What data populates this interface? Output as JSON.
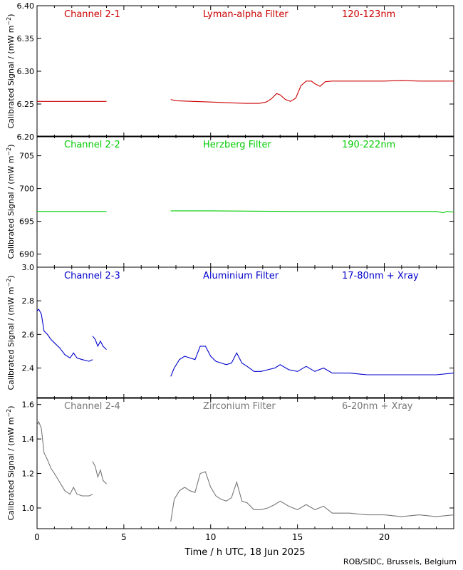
{
  "figure": {
    "xlabel": "Time / h UTC, 18 Jun 2025",
    "credit": "ROB/SIDC, Brussels, Belgium",
    "xlim": [
      0,
      24
    ],
    "xticks": [
      0,
      5,
      10,
      15,
      20
    ],
    "ylabel": "Calibrated Signal / (mW m",
    "ylabel_sup": "−2",
    "ylabel_close": ")"
  },
  "chart_data": [
    {
      "type": "line",
      "channel": "Channel 2-1",
      "filter": "Lyman-alpha Filter",
      "band": "120-123nm",
      "color": "#cc0000",
      "ylim": [
        6.2,
        6.4
      ],
      "yticks": [
        "6.20",
        "6.25",
        "6.30",
        "6.35",
        "6.40"
      ],
      "series": [
        {
          "name": "segment-1",
          "x": [
            0.0,
            1.0,
            2.0,
            3.0,
            4.0
          ],
          "y": [
            6.254,
            6.254,
            6.254,
            6.254,
            6.254
          ]
        },
        {
          "name": "segment-2",
          "x": [
            7.7,
            8.0,
            9.0,
            10.0,
            11.0,
            12.0,
            12.8,
            13.2,
            13.5,
            13.8,
            14.0,
            14.3,
            14.6,
            14.9,
            15.2,
            15.5,
            15.8,
            16.0,
            16.3,
            16.6,
            17.0,
            18.0,
            19.0,
            20.0,
            21.0,
            22.0,
            23.0,
            24.0
          ],
          "y": [
            6.257,
            6.255,
            6.254,
            6.253,
            6.252,
            6.251,
            6.251,
            6.253,
            6.258,
            6.266,
            6.264,
            6.257,
            6.254,
            6.259,
            6.278,
            6.285,
            6.285,
            6.281,
            6.277,
            6.284,
            6.285,
            6.285,
            6.285,
            6.285,
            6.286,
            6.285,
            6.285,
            6.285
          ]
        }
      ]
    },
    {
      "type": "line",
      "channel": "Channel 2-2",
      "filter": "Herzberg Filter",
      "band": "190-222nm",
      "color": "#00cc00",
      "ylim": [
        688,
        708
      ],
      "yticks": [
        "690",
        "695",
        "700",
        "705"
      ],
      "series": [
        {
          "name": "segment-1",
          "x": [
            0.0,
            2.0,
            4.0
          ],
          "y": [
            696.5,
            696.5,
            696.5
          ]
        },
        {
          "name": "segment-2",
          "x": [
            7.7,
            10.0,
            15.0,
            20.0,
            23.0,
            23.4,
            23.6,
            24.0
          ],
          "y": [
            696.6,
            696.6,
            696.5,
            696.5,
            696.5,
            696.3,
            696.5,
            696.4
          ]
        }
      ]
    },
    {
      "type": "line",
      "channel": "Channel 2-3",
      "filter": "Aluminium Filter",
      "band": "17-80nm + Xray",
      "color": "#0000cc",
      "ylim": [
        2.22,
        3.0
      ],
      "yticks": [
        "2.4",
        "2.6",
        "2.8",
        "3.0"
      ],
      "series": [
        {
          "name": "segment-1",
          "x": [
            0.0,
            0.1,
            0.25,
            0.4,
            0.6,
            0.8,
            1.0,
            1.3,
            1.6,
            1.9,
            2.1,
            2.3,
            2.6,
            3.0,
            3.2
          ],
          "y": [
            2.74,
            2.75,
            2.72,
            2.62,
            2.6,
            2.57,
            2.55,
            2.52,
            2.48,
            2.46,
            2.49,
            2.46,
            2.45,
            2.44,
            2.45
          ]
        },
        {
          "name": "segment-2",
          "x": [
            3.2,
            3.35,
            3.5,
            3.65,
            3.8,
            4.0
          ],
          "y": [
            2.59,
            2.57,
            2.53,
            2.56,
            2.53,
            2.51
          ]
        },
        {
          "name": "segment-3",
          "x": [
            7.7,
            7.9,
            8.2,
            8.5,
            8.8,
            9.1,
            9.4,
            9.7,
            10.0,
            10.3,
            10.6,
            10.9,
            11.2,
            11.5,
            11.8,
            12.1,
            12.5,
            12.9,
            13.3,
            13.7,
            14.0,
            14.5,
            15.0,
            15.5,
            16.0,
            16.5,
            17.0,
            18.0,
            19.0,
            20.0,
            21.0,
            22.0,
            23.0,
            24.0
          ],
          "y": [
            2.35,
            2.4,
            2.45,
            2.47,
            2.46,
            2.45,
            2.53,
            2.53,
            2.47,
            2.44,
            2.43,
            2.42,
            2.43,
            2.49,
            2.43,
            2.41,
            2.38,
            2.38,
            2.39,
            2.4,
            2.42,
            2.39,
            2.38,
            2.41,
            2.38,
            2.4,
            2.37,
            2.37,
            2.36,
            2.36,
            2.36,
            2.36,
            2.36,
            2.37
          ]
        }
      ]
    },
    {
      "type": "line",
      "channel": "Channel 2-4",
      "filter": "Zirconium Filter",
      "band": "6-20nm + Xray",
      "color": "#777777",
      "ylim": [
        0.88,
        1.64
      ],
      "yticks": [
        "1.0",
        "1.2",
        "1.4",
        "1.6"
      ],
      "series": [
        {
          "name": "segment-1",
          "x": [
            0.0,
            0.1,
            0.25,
            0.4,
            0.6,
            0.8,
            1.0,
            1.3,
            1.6,
            1.9,
            2.1,
            2.3,
            2.6,
            3.0,
            3.2
          ],
          "y": [
            1.48,
            1.5,
            1.46,
            1.32,
            1.28,
            1.23,
            1.2,
            1.15,
            1.1,
            1.08,
            1.12,
            1.08,
            1.07,
            1.07,
            1.08
          ]
        },
        {
          "name": "segment-2",
          "x": [
            3.2,
            3.35,
            3.5,
            3.65,
            3.8,
            4.0
          ],
          "y": [
            1.27,
            1.24,
            1.18,
            1.22,
            1.16,
            1.14
          ]
        },
        {
          "name": "segment-3",
          "x": [
            7.7,
            7.9,
            8.2,
            8.5,
            8.8,
            9.1,
            9.4,
            9.7,
            10.0,
            10.3,
            10.6,
            10.9,
            11.2,
            11.5,
            11.8,
            12.1,
            12.5,
            12.9,
            13.3,
            13.7,
            14.0,
            14.5,
            15.0,
            15.5,
            16.0,
            16.5,
            17.0,
            18.0,
            19.0,
            20.0,
            21.0,
            22.0,
            23.0,
            24.0
          ],
          "y": [
            0.92,
            1.05,
            1.1,
            1.12,
            1.1,
            1.09,
            1.2,
            1.21,
            1.12,
            1.07,
            1.05,
            1.04,
            1.06,
            1.15,
            1.04,
            1.03,
            0.99,
            0.99,
            1.0,
            1.02,
            1.04,
            1.01,
            0.99,
            1.02,
            0.99,
            1.01,
            0.97,
            0.97,
            0.96,
            0.96,
            0.95,
            0.96,
            0.95,
            0.96
          ]
        }
      ]
    }
  ]
}
